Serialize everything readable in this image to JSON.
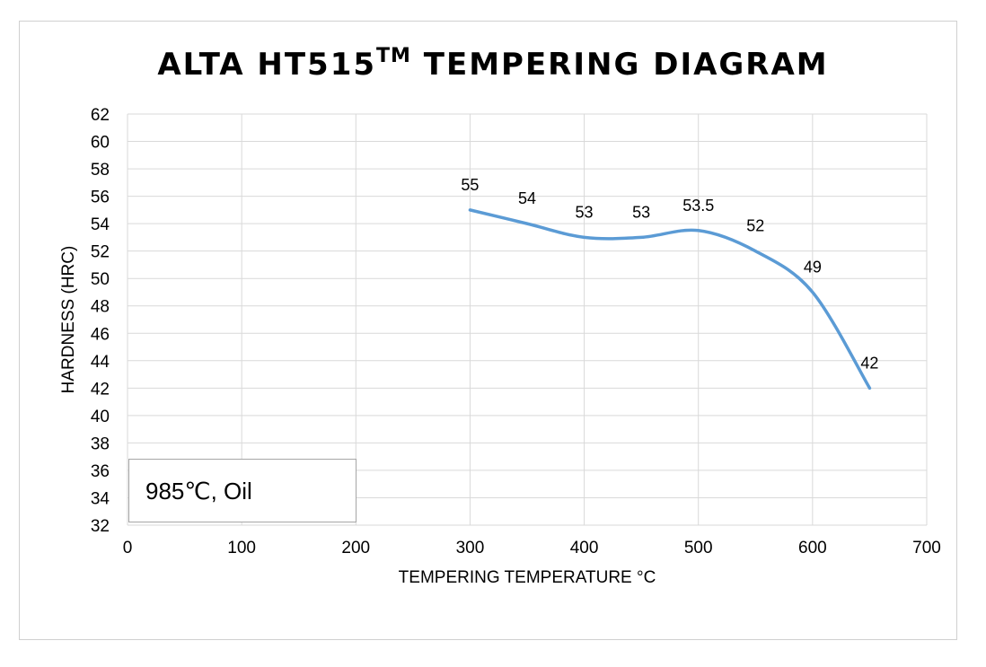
{
  "chart_data": {
    "type": "line",
    "title_main": "ALTA HT515",
    "title_tm": "TM",
    "title_rest": " TEMPERING DIAGRAM",
    "xlabel": "TEMPERING TEMPERATURE °C",
    "ylabel": "HARDNESS (HRC)",
    "xlim": [
      0,
      700
    ],
    "ylim": [
      32,
      62
    ],
    "xticks": [
      0,
      100,
      200,
      300,
      400,
      500,
      600,
      700
    ],
    "yticks": [
      32,
      34,
      36,
      38,
      40,
      42,
      44,
      46,
      48,
      50,
      52,
      54,
      56,
      58,
      60,
      62
    ],
    "grid": true,
    "annotation": "985℃, Oil",
    "series": [
      {
        "color": "#5b9bd5",
        "smooth": true,
        "x": [
          300,
          350,
          400,
          450,
          500,
          550,
          600,
          650
        ],
        "y": [
          55,
          54,
          53,
          53,
          53.5,
          52,
          49,
          42
        ],
        "labels": [
          "55",
          "54",
          "53",
          "53",
          "53.5",
          "52",
          "49",
          "42"
        ]
      }
    ]
  }
}
